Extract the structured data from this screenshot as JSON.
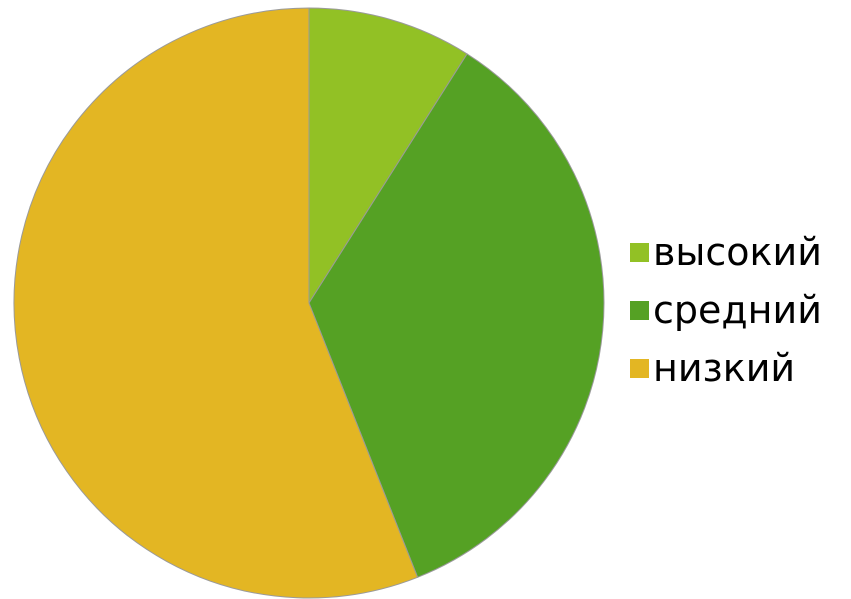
{
  "chart_data": {
    "type": "pie",
    "title": "",
    "slices": [
      {
        "label": "высокий",
        "value": 9,
        "color": "#92c125"
      },
      {
        "label": "средний",
        "value": 35,
        "color": "#55a124"
      },
      {
        "label": "низкий",
        "value": 56,
        "color": "#e3b623"
      }
    ],
    "start_angle_deg": 0,
    "direction": "clockwise",
    "legend_position": "right",
    "border_color": "#9a9a9a"
  }
}
